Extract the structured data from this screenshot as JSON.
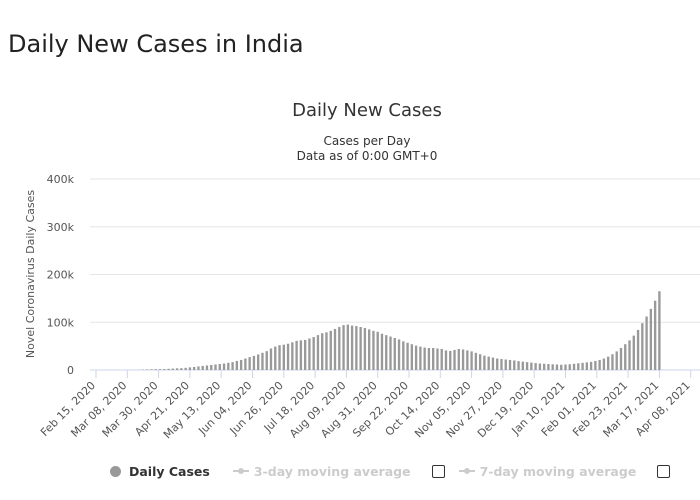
{
  "page_title": "Daily New Cases in India",
  "chart_data": {
    "type": "bar",
    "title": "Daily New Cases",
    "subtitle_lines": [
      "Cases per Day",
      "Data as of 0:00 GMT+0"
    ],
    "ylabel": "Novel Coronavirus Daily Cases",
    "xlabel": "",
    "ylim": [
      0,
      400000
    ],
    "y_ticks": [
      0,
      100000,
      200000,
      300000,
      400000
    ],
    "y_tick_labels": [
      "0",
      "100k",
      "200k",
      "300k",
      "400k"
    ],
    "grid": true,
    "x_tick_labels": [
      "Feb 15, 2020",
      "Mar 08, 2020",
      "Mar 30, 2020",
      "Apr 21, 2020",
      "May 13, 2020",
      "Jun 04, 2020",
      "Jun 26, 2020",
      "Jul 18, 2020",
      "Aug 09, 2020",
      "Aug 31, 2020",
      "Sep 22, 2020",
      "Oct 14, 2020",
      "Nov 05, 2020",
      "Nov 27, 2020",
      "Dec 19, 2020",
      "Jan 10, 2021",
      "Feb 01, 2021",
      "Feb 23, 2021",
      "Mar 17, 2021",
      "Apr 08, 2021"
    ],
    "bar_color": "#999999",
    "series": [
      {
        "name": "Daily Cases",
        "x_start": "2020-02-15",
        "interval_days": 3,
        "values": [
          0,
          0,
          0,
          0,
          0,
          0,
          0,
          0,
          0,
          100,
          300,
          800,
          1200,
          1500,
          1800,
          1800,
          2000,
          2500,
          3000,
          3500,
          3800,
          4500,
          5500,
          6300,
          7500,
          8500,
          9500,
          10500,
          11500,
          12500,
          13500,
          15000,
          16500,
          19000,
          21000,
          24000,
          27000,
          29500,
          32500,
          36000,
          39500,
          45000,
          49000,
          52000,
          53000,
          55000,
          58000,
          61000,
          62000,
          63000,
          66000,
          69000,
          73000,
          77000,
          79000,
          82000,
          86000,
          90000,
          94000,
          95000,
          93000,
          92000,
          90000,
          88000,
          85000,
          82000,
          80000,
          76000,
          73000,
          70000,
          67000,
          64000,
          60000,
          57000,
          54000,
          51000,
          49000,
          47000,
          46000,
          46000,
          45000,
          44000,
          41000,
          40000,
          42000,
          44000,
          43000,
          41000,
          39000,
          36000,
          33000,
          30000,
          28000,
          26000,
          24000,
          23000,
          22000,
          21000,
          20000,
          18500,
          17500,
          16500,
          15500,
          14500,
          13500,
          13000,
          12500,
          12000,
          11500,
          11000,
          11500,
          12000,
          13000,
          14000,
          15000,
          16000,
          17000,
          19000,
          21000,
          24000,
          28000,
          33000,
          39000,
          46000,
          54000,
          62000,
          72000,
          84000,
          98000,
          112000,
          128000,
          145000,
          165000
        ]
      },
      {
        "name": "3-day moving average",
        "visible": false
      },
      {
        "name": "7-day moving average",
        "visible": false
      }
    ]
  }
}
